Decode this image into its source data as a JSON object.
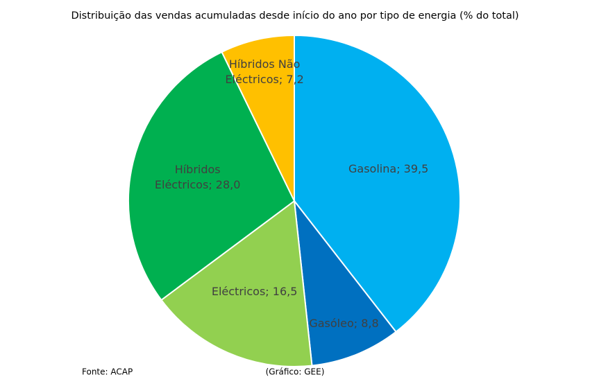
{
  "chart_data": {
    "type": "pie",
    "title": "Distribuição das vendas acumuladas desde início do ano por tipo de energia (% do total)",
    "categories": [
      "Gasolina",
      "Gasóleo",
      "Eléctricos",
      "Híbridos Eléctricos",
      "Híbridos Não Eléctricos"
    ],
    "values": [
      39.5,
      8.8,
      16.5,
      28.0,
      7.2
    ],
    "value_labels": [
      "39,5",
      "8,8",
      "16,5",
      "28,0",
      "7,2"
    ],
    "label_separator": "; ",
    "colors": [
      "#00b0f0",
      "#0070c0",
      "#92d050",
      "#00b050",
      "#ffc000"
    ],
    "source": "Fonte: ACAP",
    "credit": "(Gráfico: GEE)"
  }
}
